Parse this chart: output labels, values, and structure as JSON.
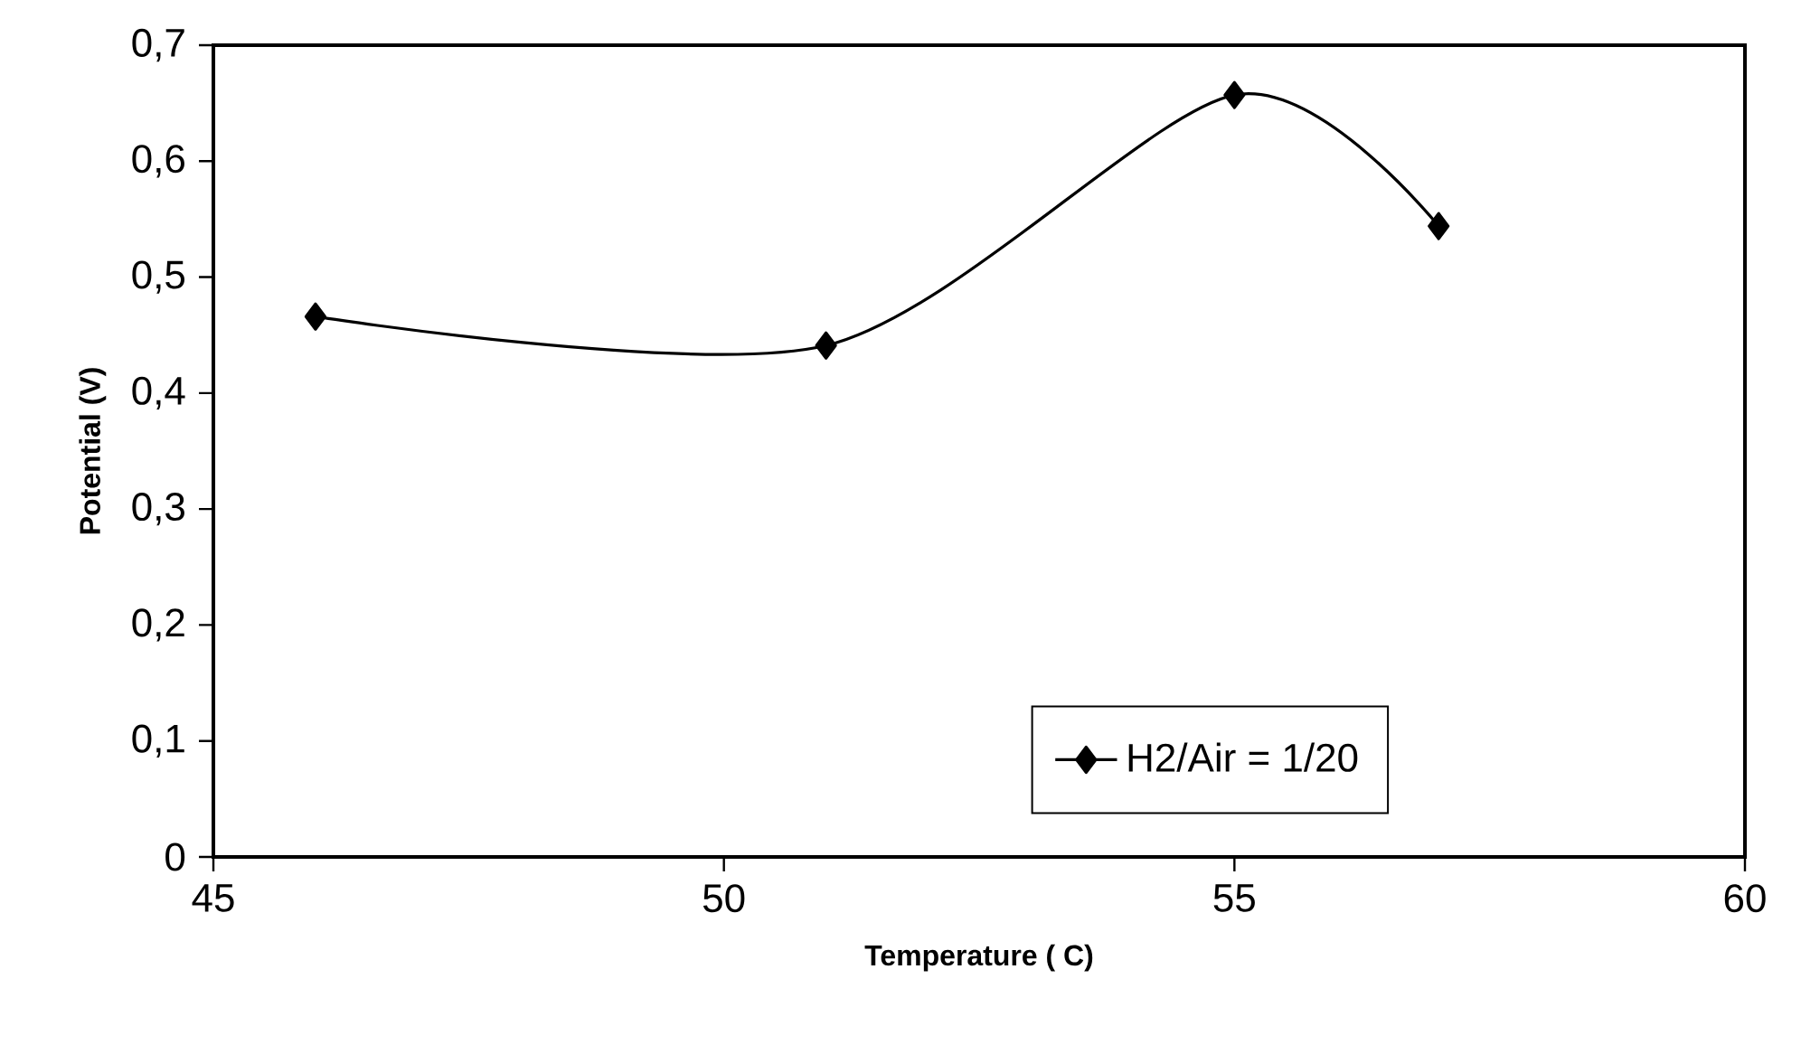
{
  "chart_data": {
    "type": "line",
    "xlabel": "Temperature  ( C)",
    "ylabel": "Potential (V)",
    "x": [
      46,
      51,
      55,
      57
    ],
    "series": [
      {
        "name": "H2/Air = 1/20",
        "color": "#000000",
        "values": [
          0.466,
          0.441,
          0.657,
          0.544
        ]
      }
    ],
    "xlim": [
      45,
      60
    ],
    "xticks": [
      45,
      50,
      55,
      60
    ],
    "ylim": [
      0,
      0.7
    ],
    "yticks": [
      {
        "value": 0,
        "label": "0"
      },
      {
        "value": 0.1,
        "label": "0,1"
      },
      {
        "value": 0.2,
        "label": "0,2"
      },
      {
        "value": 0.3,
        "label": "0,3"
      },
      {
        "value": 0.4,
        "label": "0,4"
      },
      {
        "value": 0.5,
        "label": "0,5"
      },
      {
        "value": 0.6,
        "label": "0,6"
      },
      {
        "value": 0.7,
        "label": "0,7"
      }
    ],
    "legend": "bottom right",
    "marker": "diamond",
    "line_style": "solid",
    "grid": false
  }
}
